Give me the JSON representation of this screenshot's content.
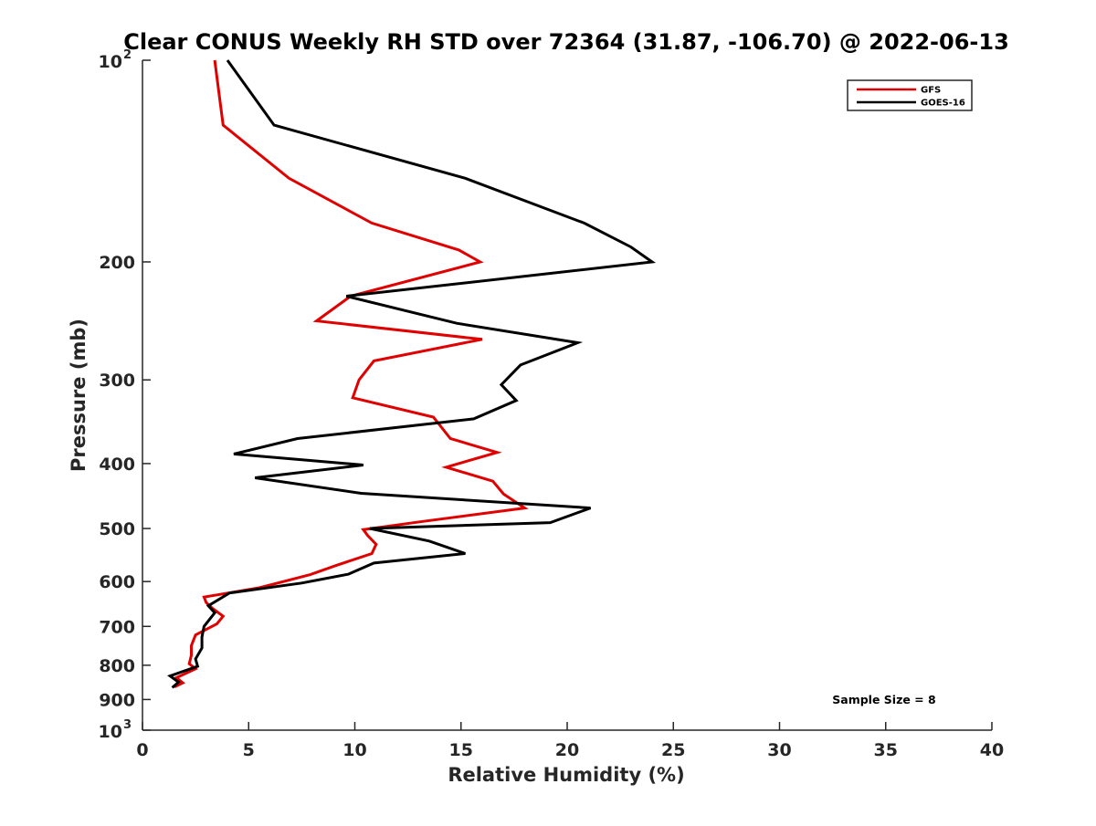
{
  "chart_data": {
    "type": "line",
    "title": "Clear CONUS Weekly RH STD over 72364 (31.87, -106.70) @ 2022-06-13",
    "xlabel": "Relative Humidity (%)",
    "ylabel": "Pressure (mb)",
    "xlim": [
      0,
      40
    ],
    "ylim": [
      100,
      1000
    ],
    "y_scale": "log",
    "y_reversed": true,
    "grid": false,
    "legend_position": "top-right",
    "x_ticks": [
      {
        "value": 0,
        "label": "0"
      },
      {
        "value": 5,
        "label": "5"
      },
      {
        "value": 10,
        "label": "10"
      },
      {
        "value": 15,
        "label": "15"
      },
      {
        "value": 20,
        "label": "20"
      },
      {
        "value": 25,
        "label": "25"
      },
      {
        "value": 30,
        "label": "30"
      },
      {
        "value": 35,
        "label": "35"
      },
      {
        "value": 40,
        "label": "40"
      }
    ],
    "y_ticks": [
      {
        "value": 100,
        "label": "10",
        "exponent": "2"
      },
      {
        "value": 200,
        "label": "200"
      },
      {
        "value": 300,
        "label": "300"
      },
      {
        "value": 400,
        "label": "400"
      },
      {
        "value": 500,
        "label": "500"
      },
      {
        "value": 600,
        "label": "600"
      },
      {
        "value": 700,
        "label": "700"
      },
      {
        "value": 800,
        "label": "800"
      },
      {
        "value": 900,
        "label": "900"
      },
      {
        "value": 1000,
        "label": "10",
        "exponent": "3"
      }
    ],
    "series": [
      {
        "name": "GFS",
        "color": "#e00000",
        "points": [
          [
            3.4,
            100
          ],
          [
            3.8,
            125
          ],
          [
            6.9,
            150
          ],
          [
            10.8,
            175
          ],
          [
            14.9,
            192
          ],
          [
            15.9,
            200
          ],
          [
            9.8,
            225
          ],
          [
            8.2,
            245
          ],
          [
            16.0,
            261
          ],
          [
            10.9,
            281
          ],
          [
            10.2,
            300
          ],
          [
            9.9,
            319
          ],
          [
            13.7,
            341
          ],
          [
            14.5,
            367
          ],
          [
            16.7,
            385
          ],
          [
            14.3,
            405
          ],
          [
            16.5,
            425
          ],
          [
            17.0,
            444
          ],
          [
            18.0,
            466
          ],
          [
            13.2,
            488
          ],
          [
            10.4,
            502
          ],
          [
            10.6,
            512
          ],
          [
            11.0,
            528
          ],
          [
            10.8,
            545
          ],
          [
            9.1,
            568
          ],
          [
            7.9,
            586
          ],
          [
            5.5,
            613
          ],
          [
            2.9,
            633
          ],
          [
            3.0,
            645
          ],
          [
            3.3,
            658
          ],
          [
            3.8,
            676
          ],
          [
            3.5,
            694
          ],
          [
            2.5,
            721
          ],
          [
            2.3,
            748
          ],
          [
            2.3,
            773
          ],
          [
            2.2,
            796
          ],
          [
            2.5,
            810
          ],
          [
            1.6,
            835
          ],
          [
            1.9,
            850
          ],
          [
            1.5,
            862
          ]
        ]
      },
      {
        "name": "GOES-16",
        "color": "#000000",
        "points": [
          [
            4.0,
            100
          ],
          [
            6.2,
            125
          ],
          [
            15.2,
            150
          ],
          [
            20.8,
            175
          ],
          [
            23.0,
            190
          ],
          [
            24.0,
            200
          ],
          [
            9.6,
            225
          ],
          [
            14.8,
            247
          ],
          [
            20.5,
            264
          ],
          [
            17.8,
            285
          ],
          [
            16.9,
            305
          ],
          [
            17.6,
            322
          ],
          [
            15.6,
            343
          ],
          [
            7.3,
            367
          ],
          [
            4.3,
            387
          ],
          [
            10.4,
            402
          ],
          [
            5.3,
            420
          ],
          [
            10.3,
            443
          ],
          [
            21.1,
            466
          ],
          [
            19.2,
            490
          ],
          [
            10.7,
            500
          ],
          [
            13.5,
            522
          ],
          [
            15.2,
            545
          ],
          [
            10.9,
            563
          ],
          [
            9.7,
            585
          ],
          [
            7.5,
            603
          ],
          [
            4.1,
            624
          ],
          [
            3.1,
            652
          ],
          [
            3.4,
            668
          ],
          [
            2.9,
            700
          ],
          [
            2.8,
            726
          ],
          [
            2.8,
            754
          ],
          [
            2.5,
            783
          ],
          [
            2.6,
            803
          ],
          [
            1.3,
            830
          ],
          [
            1.7,
            848
          ],
          [
            1.4,
            864
          ]
        ]
      }
    ],
    "legend": [
      "GFS",
      "GOES-16"
    ],
    "annotation": "Sample Size = 8"
  }
}
